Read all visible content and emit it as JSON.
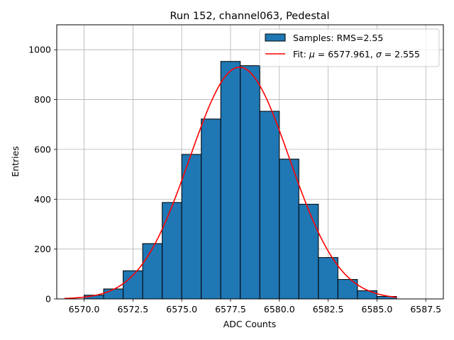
{
  "chart_data": {
    "type": "bar",
    "title": "Run 152, channel063, Pedestal",
    "xlabel": "ADC Counts",
    "ylabel": "Entries",
    "xlim": [
      6568.6,
      6588.4
    ],
    "ylim": [
      0,
      1100
    ],
    "grid": true,
    "legend_position": "top-right",
    "bin_width": 1.0,
    "bin_edges_start": 6570.0,
    "x_ticks": [
      6570.0,
      6572.5,
      6575.0,
      6577.5,
      6580.0,
      6582.5,
      6585.0,
      6587.5
    ],
    "x_tick_labels": [
      "6570.0",
      "6572.5",
      "6575.0",
      "6577.5",
      "6580.0",
      "6582.5",
      "6585.0",
      "6587.5"
    ],
    "y_ticks": [
      0,
      200,
      400,
      600,
      800,
      1000
    ],
    "y_tick_labels": [
      "0",
      "200",
      "400",
      "600",
      "800",
      "1000"
    ],
    "series": [
      {
        "name": "Samples: RMS=2.55",
        "kind": "histogram",
        "color": "#1f77b4",
        "edge_color": "#000000",
        "bins": [
          6570,
          6571,
          6572,
          6573,
          6574,
          6575,
          6576,
          6577,
          6578,
          6579,
          6580,
          6581,
          6582,
          6583,
          6584,
          6585
        ],
        "values": [
          15,
          40,
          113,
          222,
          387,
          580,
          722,
          953,
          936,
          753,
          561,
          380,
          166,
          78,
          33,
          10
        ]
      },
      {
        "name": "Fit: μ = 6577.961, σ = 2.555",
        "kind": "gaussian-fit",
        "color": "#ff0000",
        "mu": 6577.961,
        "sigma": 2.555,
        "amplitude": 930,
        "x_range": [
          6569.0,
          6586.0
        ]
      }
    ],
    "legend": [
      {
        "label_prefix": "Samples: RMS=2.55",
        "swatch": "patch"
      },
      {
        "label_prefix": "Fit: ",
        "mu_symbol": "μ",
        "mu_text": " = 6577.961, ",
        "sigma_symbol": "σ",
        "sigma_text": " = 2.555",
        "swatch": "line"
      }
    ]
  }
}
